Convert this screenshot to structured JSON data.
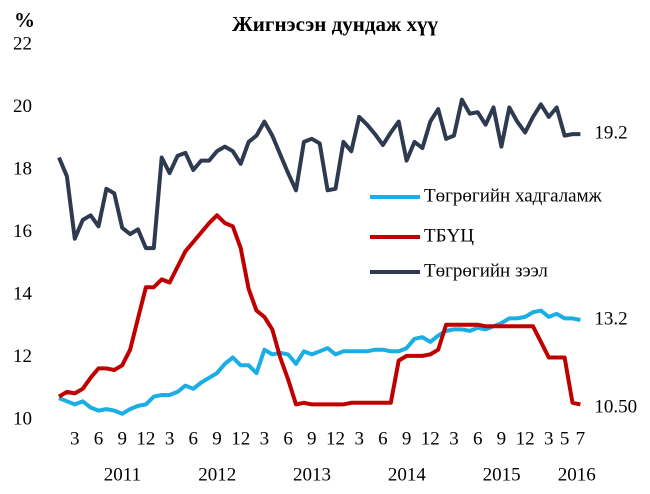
{
  "chart_data": {
    "type": "line",
    "title": "Жигнэсэн дундаж хүү",
    "y_unit": "%",
    "categories": [
      null,
      null,
      "3",
      null,
      null,
      "6",
      null,
      null,
      "9",
      null,
      null,
      "12",
      null,
      null,
      "3",
      null,
      null,
      "6",
      null,
      null,
      "9",
      null,
      null,
      "12",
      null,
      null,
      "3",
      null,
      null,
      "6",
      null,
      null,
      "9",
      null,
      null,
      "12",
      null,
      null,
      "3",
      null,
      null,
      "6",
      null,
      null,
      "9",
      null,
      null,
      "12",
      null,
      null,
      "3",
      null,
      null,
      "6",
      null,
      null,
      "9",
      null,
      null,
      "12",
      null,
      null,
      "3",
      null,
      "5",
      null,
      "7"
    ],
    "year_groups": [
      "2011",
      "2012",
      "2013",
      "2014",
      "2015",
      "2016"
    ],
    "ylim": [
      10,
      22
    ],
    "yticks": [
      10,
      12,
      14,
      16,
      18,
      20,
      22
    ],
    "grid": false,
    "legend_position": "right",
    "series": [
      {
        "name": "Төгрөгийн хадгаламж",
        "color": "#1aaee4",
        "values": [
          10.7,
          10.6,
          10.5,
          10.6,
          10.4,
          10.3,
          10.35,
          10.3,
          10.2,
          10.35,
          10.45,
          10.5,
          10.75,
          10.8,
          10.8,
          10.9,
          11.1,
          11.0,
          11.2,
          11.35,
          11.5,
          11.8,
          12.0,
          11.75,
          11.75,
          11.5,
          12.25,
          12.1,
          12.15,
          12.1,
          11.8,
          12.2,
          12.1,
          12.2,
          12.3,
          12.1,
          12.2,
          12.2,
          12.2,
          12.2,
          12.25,
          12.25,
          12.2,
          12.2,
          12.3,
          12.6,
          12.65,
          12.5,
          12.7,
          12.85,
          12.9,
          12.9,
          12.85,
          12.95,
          12.9,
          13.0,
          13.1,
          13.25,
          13.25,
          13.3,
          13.45,
          13.5,
          13.3,
          13.4,
          13.25,
          13.25,
          13.2
        ],
        "end_label": "13.2"
      },
      {
        "name": "ТБҮЦ",
        "color": "#c00000",
        "values": [
          10.75,
          10.9,
          10.85,
          11.0,
          11.35,
          11.65,
          11.65,
          11.6,
          11.75,
          12.25,
          13.25,
          14.25,
          14.25,
          14.5,
          14.4,
          14.9,
          15.4,
          15.7,
          16.0,
          16.3,
          16.55,
          16.3,
          16.2,
          15.5,
          14.2,
          13.5,
          13.3,
          12.9,
          12.0,
          11.3,
          10.5,
          10.55,
          10.5,
          10.5,
          10.5,
          10.5,
          10.5,
          10.55,
          10.55,
          10.55,
          10.55,
          10.55,
          10.55,
          11.9,
          12.05,
          12.05,
          12.05,
          12.1,
          12.25,
          13.05,
          13.05,
          13.05,
          13.05,
          13.05,
          13.0,
          13.0,
          13.0,
          13.0,
          13.0,
          13.0,
          13.0,
          12.5,
          12.0,
          12.0,
          12.0,
          10.55,
          10.5
        ],
        "end_label": "10.50"
      },
      {
        "name": "Төгрөгийн зээл",
        "color": "#2e3a4f",
        "values": [
          18.4,
          17.8,
          15.8,
          16.4,
          16.55,
          16.2,
          17.4,
          17.25,
          16.15,
          15.95,
          16.1,
          15.5,
          15.5,
          18.4,
          17.9,
          18.45,
          18.55,
          18.0,
          18.3,
          18.3,
          18.6,
          18.75,
          18.6,
          18.2,
          18.9,
          19.1,
          19.55,
          19.1,
          18.5,
          17.9,
          17.35,
          18.9,
          19.0,
          18.85,
          17.35,
          17.4,
          18.9,
          18.6,
          19.7,
          19.45,
          19.15,
          18.8,
          19.2,
          19.55,
          18.3,
          18.9,
          18.7,
          19.55,
          19.95,
          19.0,
          19.1,
          20.25,
          19.8,
          19.85,
          19.45,
          20.0,
          18.75,
          20.0,
          19.55,
          19.2,
          19.7,
          20.1,
          19.7,
          20.0,
          19.1,
          19.15,
          19.15
        ],
        "end_label": "19.2"
      }
    ]
  }
}
